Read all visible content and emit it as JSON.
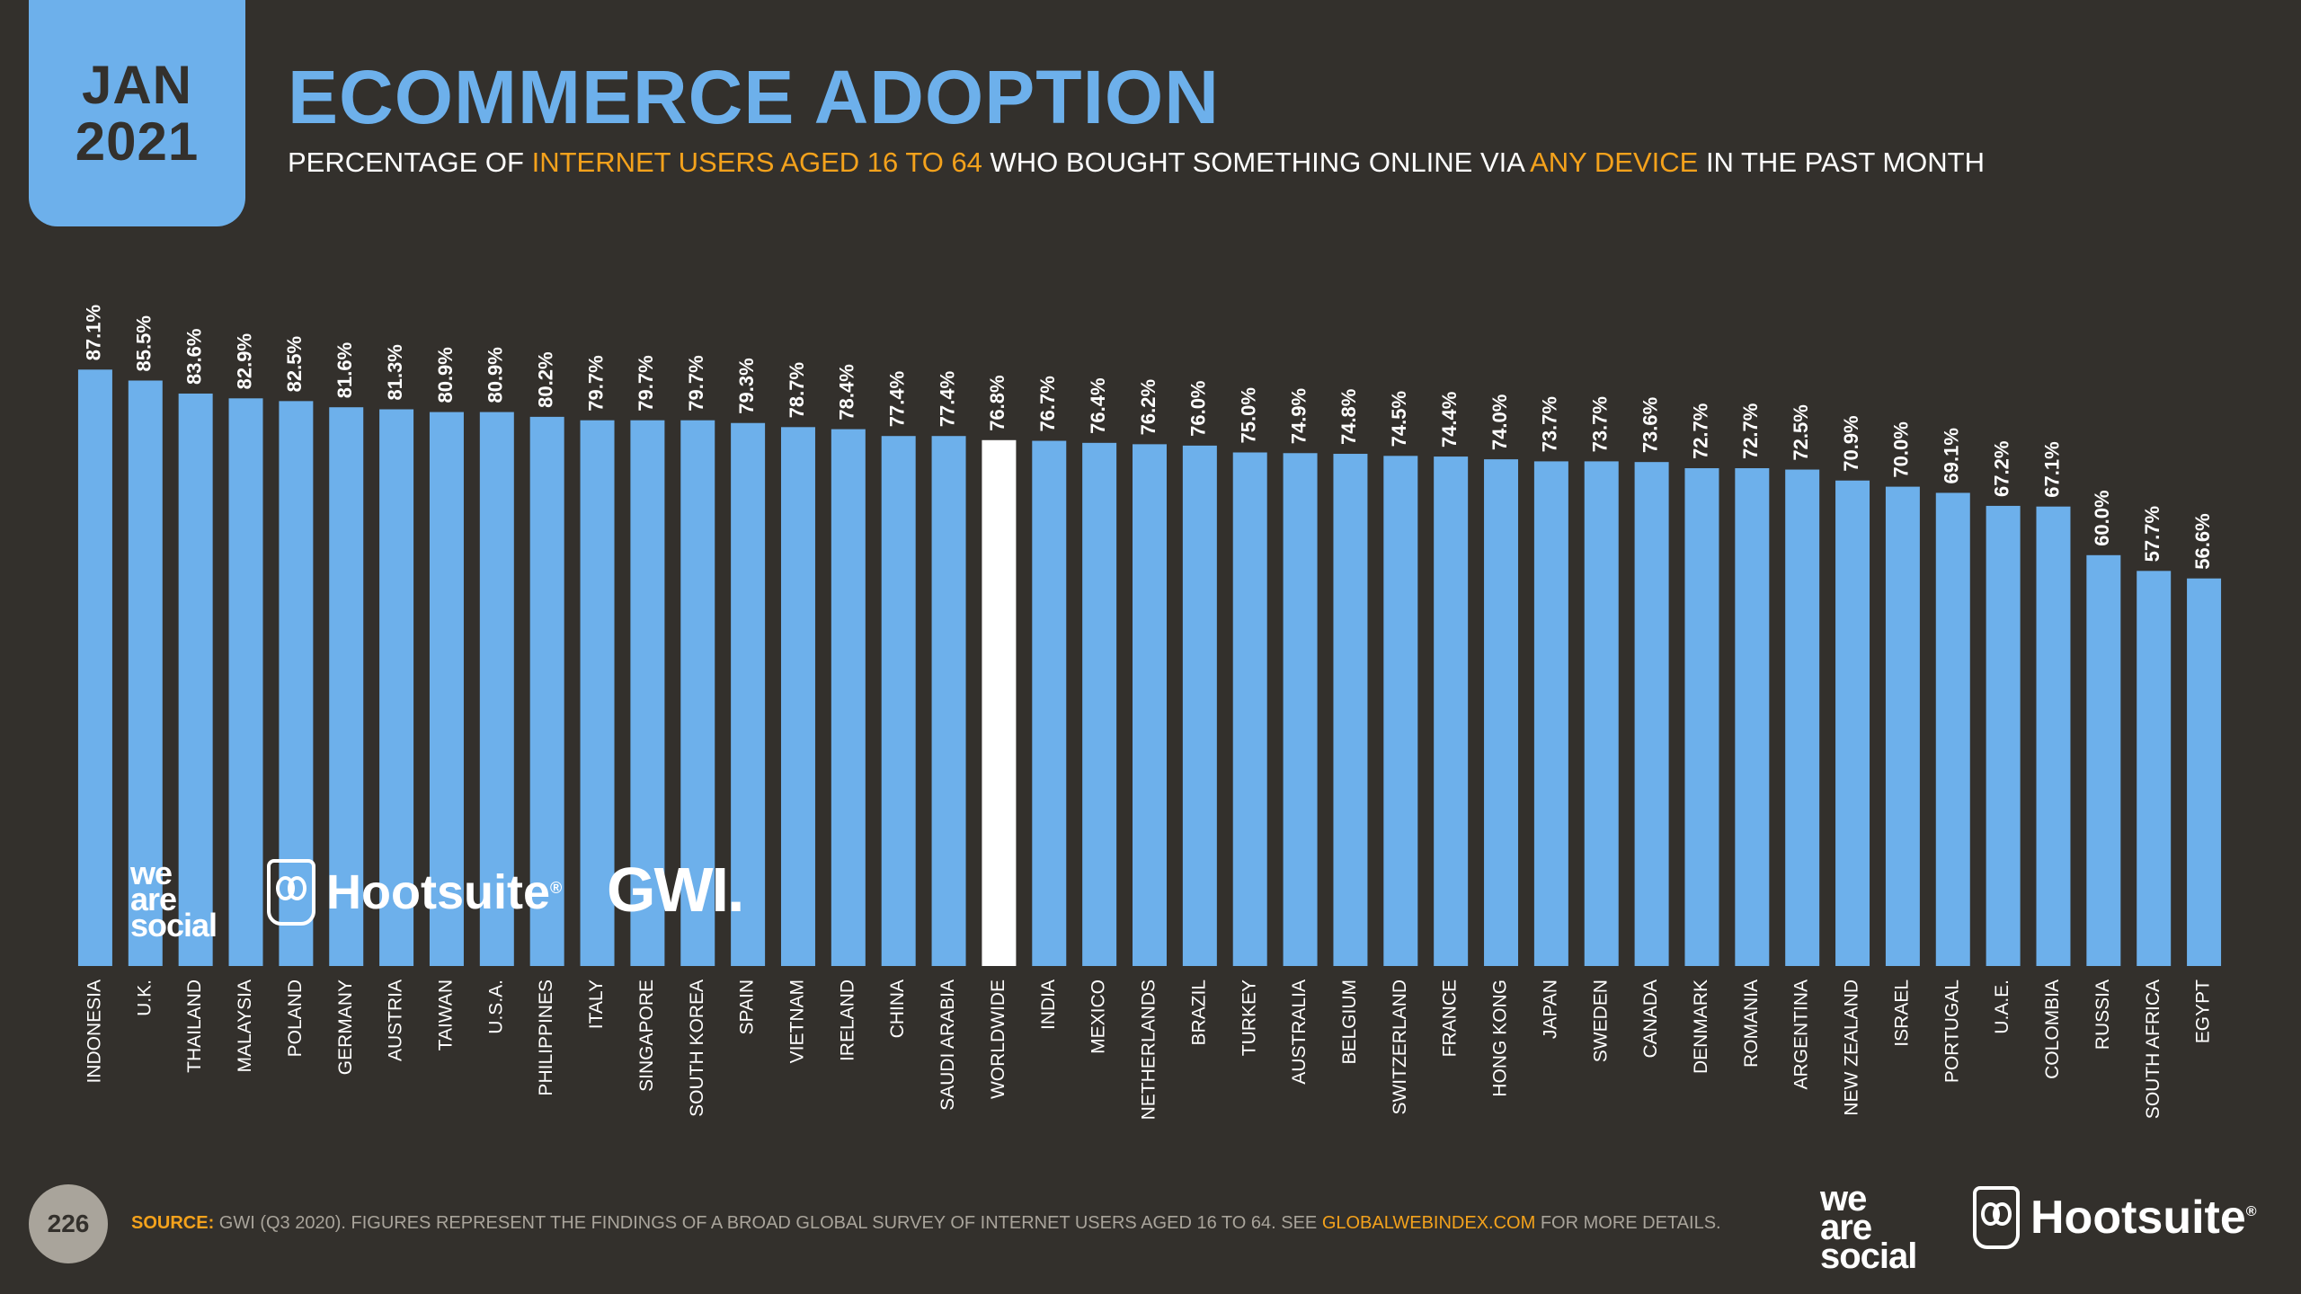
{
  "header": {
    "badge_month": "JAN",
    "badge_year": "2021",
    "title": "ECOMMERCE ADOPTION",
    "subtitle_parts": [
      "PERCENTAGE OF ",
      "INTERNET USERS AGED 16 TO 64",
      " WHO BOUGHT SOMETHING ONLINE VIA ",
      "ANY DEVICE",
      " IN THE PAST MONTH"
    ]
  },
  "colors": {
    "background": "#33302c",
    "bar": "#6db0eb",
    "highlight_bar": "#ffffff",
    "accent": "#f4a21c",
    "muted": "#a9a49b"
  },
  "chart_data": {
    "type": "bar",
    "orientation": "vertical",
    "categories": [
      "INDONESIA",
      "U.K.",
      "THAILAND",
      "MALAYSIA",
      "POLAND",
      "GERMANY",
      "AUSTRIA",
      "TAIWAN",
      "U.S.A.",
      "PHILIPPINES",
      "ITALY",
      "SINGAPORE",
      "SOUTH KOREA",
      "SPAIN",
      "VIETNAM",
      "IRELAND",
      "CHINA",
      "SAUDI ARABIA",
      "WORLDWIDE",
      "INDIA",
      "MEXICO",
      "NETHERLANDS",
      "BRAZIL",
      "TURKEY",
      "AUSTRALIA",
      "BELGIUM",
      "SWITZERLAND",
      "FRANCE",
      "HONG KONG",
      "JAPAN",
      "SWEDEN",
      "CANADA",
      "DENMARK",
      "ROMANIA",
      "ARGENTINA",
      "NEW ZEALAND",
      "ISRAEL",
      "PORTUGAL",
      "U.A.E.",
      "COLOMBIA",
      "RUSSIA",
      "SOUTH AFRICA",
      "EGYPT"
    ],
    "values": [
      87.1,
      85.5,
      83.6,
      82.9,
      82.5,
      81.6,
      81.3,
      80.9,
      80.9,
      80.2,
      79.7,
      79.7,
      79.7,
      79.3,
      78.7,
      78.4,
      77.4,
      77.4,
      76.8,
      76.7,
      76.4,
      76.2,
      76.0,
      75.0,
      74.9,
      74.8,
      74.5,
      74.4,
      74.0,
      73.7,
      73.7,
      73.6,
      72.7,
      72.7,
      72.5,
      70.9,
      70.0,
      69.1,
      67.2,
      67.1,
      60.0,
      57.7,
      56.6
    ],
    "value_labels": [
      "87.1%",
      "85.5%",
      "83.6%",
      "82.9%",
      "82.5%",
      "81.6%",
      "81.3%",
      "80.9%",
      "80.9%",
      "80.2%",
      "79.7%",
      "79.7%",
      "79.7%",
      "79.3%",
      "78.7%",
      "78.4%",
      "77.4%",
      "77.4%",
      "76.8%",
      "76.7%",
      "76.4%",
      "76.2%",
      "76.0%",
      "75.0%",
      "74.9%",
      "74.8%",
      "74.5%",
      "74.4%",
      "74.0%",
      "73.7%",
      "73.7%",
      "73.6%",
      "72.7%",
      "72.7%",
      "72.5%",
      "70.9%",
      "70.0%",
      "69.1%",
      "67.2%",
      "67.1%",
      "60.0%",
      "57.7%",
      "56.6%"
    ],
    "highlight": "WORLDWIDE",
    "value_unit": "%",
    "ylim": [
      0,
      100
    ],
    "grid": false,
    "legend": "none"
  },
  "logos": {
    "we_are_social": [
      "we",
      "are",
      "social"
    ],
    "hootsuite": "Hootsuite",
    "registered_mark": "®",
    "gwi": "GWI."
  },
  "footer": {
    "page_number": "226",
    "source_label": "SOURCE:",
    "source_text": " GWI (Q3 2020). FIGURES REPRESENT THE FINDINGS OF A BROAD GLOBAL SURVEY OF INTERNET USERS AGED 16 TO 64. SEE ",
    "source_link": "GLOBALWEBINDEX.COM",
    "source_end": " FOR MORE DETAILS."
  }
}
